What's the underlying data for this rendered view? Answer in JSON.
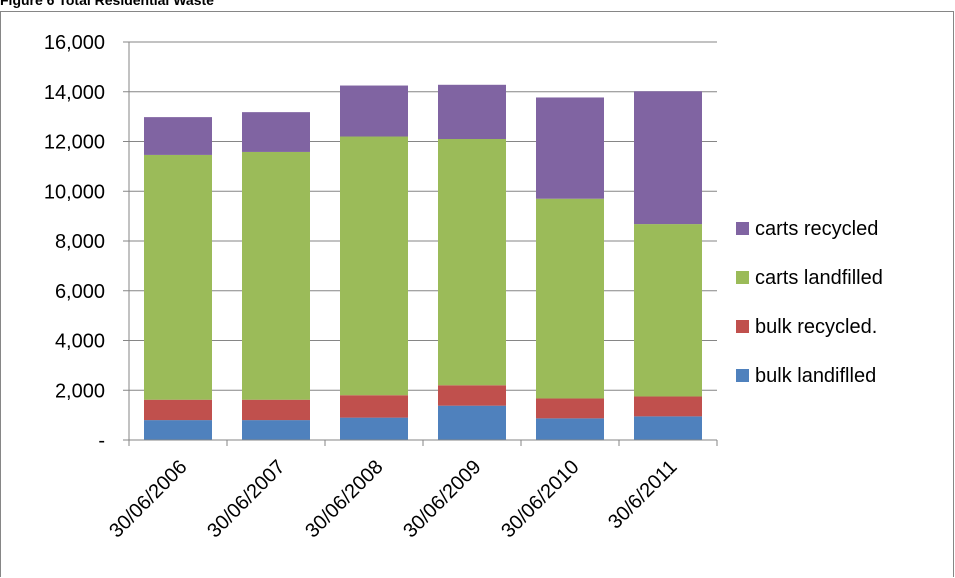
{
  "caption": "Figure 6 Total Residential Waste",
  "chart_data": {
    "type": "bar",
    "stacked": true,
    "title": "",
    "xlabel": "",
    "ylabel": "",
    "categories": [
      "30/06/2006",
      "30/06/2007",
      "30/06/2008",
      "30/06/2009",
      "30/06/2010",
      "30/6/2011"
    ],
    "ylim": [
      0,
      16000
    ],
    "y_ticks": [
      0,
      2000,
      4000,
      6000,
      8000,
      10000,
      12000,
      14000,
      16000
    ],
    "y_tick_labels": [
      "-",
      "2,000",
      "4,000",
      "6,000",
      "8,000",
      "10,000",
      "12,000",
      "14,000",
      "16,000"
    ],
    "grid": true,
    "legend_position": "right",
    "series": [
      {
        "name": "bulk landiflled",
        "color": "#4f81bd",
        "values": [
          800,
          800,
          900,
          1380,
          870,
          950
        ]
      },
      {
        "name": "bulk recycled.",
        "color": "#c0504d",
        "values": [
          820,
          820,
          900,
          820,
          800,
          800
        ]
      },
      {
        "name": "carts landfilled",
        "color": "#9bbb59",
        "values": [
          9840,
          9960,
          10400,
          9900,
          8030,
          6930
        ]
      },
      {
        "name": "carts recycled",
        "color": "#8064a2",
        "values": [
          1520,
          1600,
          2050,
          2180,
          4070,
          5340
        ]
      }
    ]
  }
}
